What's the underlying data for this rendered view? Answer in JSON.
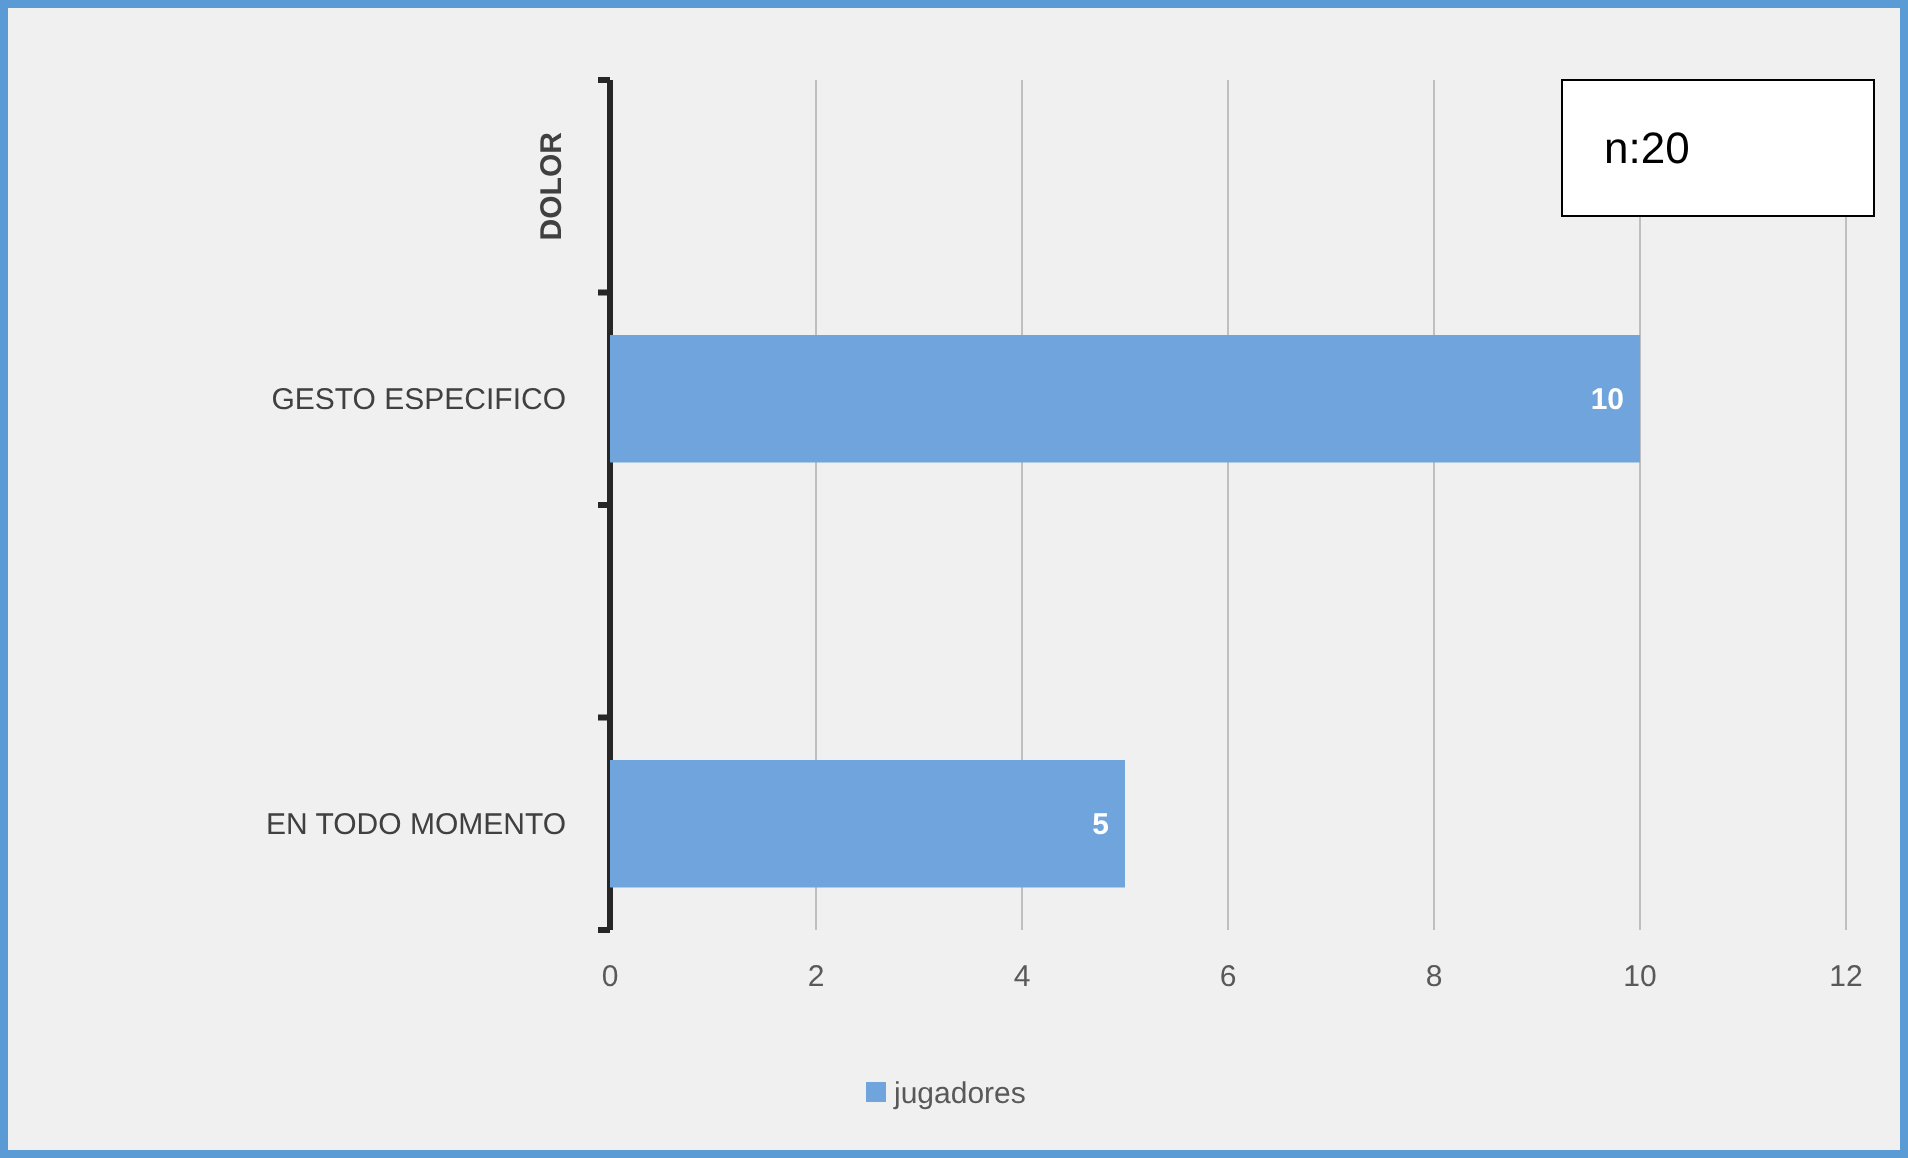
{
  "chart_data": {
    "type": "bar",
    "orientation": "horizontal",
    "ylabel": "DOLOR",
    "categories": [
      null,
      "GESTO ESPECIFICO",
      null,
      "EN TODO MOMENTO"
    ],
    "series": [
      {
        "name": "jugadores",
        "color": "#6fa5dc",
        "values": [
          null,
          10,
          null,
          5
        ]
      }
    ],
    "xlim": [
      0,
      12
    ],
    "xticks": [
      0,
      2,
      4,
      6,
      8,
      10,
      12
    ],
    "grid": "x",
    "data_labels": true,
    "legend": "bottom",
    "annotations": [
      "n:20"
    ]
  }
}
